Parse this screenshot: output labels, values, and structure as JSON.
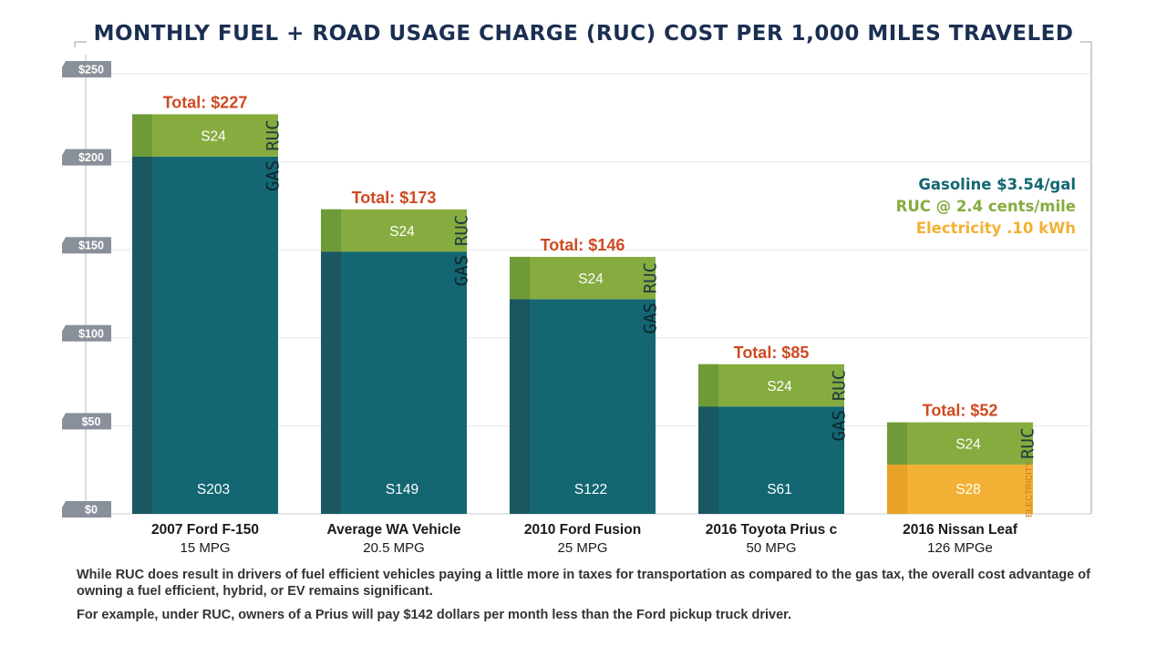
{
  "title": "MONTHLY FUEL + ROAD USAGE CHARGE (RUC) COST PER 1,000 MILES TRAVELED",
  "legend": {
    "gasoline": "Gasoline $3.54/gal",
    "ruc": "RUC @ 2.4 cents/mile",
    "electricity": "Electricity .10 kWh"
  },
  "colors": {
    "gas": "#136672",
    "gas_dark": "#1a5761",
    "ruc": "#86ab3f",
    "ruc_dark": "#6e9a38",
    "electricity": "#f2b134",
    "electricity_dark": "#e7a127",
    "total": "#cf4a22",
    "title": "#1b2f52",
    "axis_tag": "#8a909a"
  },
  "chart_data": {
    "type": "bar",
    "stacked": true,
    "categories": [
      "2007 Ford F-150",
      "Average WA Vehicle",
      "2010 Ford Fusion",
      "2016 Toyota Prius c",
      "2016 Nissan Leaf"
    ],
    "subcategories": [
      "15 MPG",
      "20.5 MPG",
      "25 MPG",
      "50 MPG",
      "126 MPGe"
    ],
    "series": [
      {
        "name": "GAS",
        "values": [
          203,
          149,
          122,
          61,
          0
        ],
        "labels": [
          "S203",
          "S149",
          "S122",
          "S61",
          ""
        ]
      },
      {
        "name": "ELECTRICITY",
        "values": [
          0,
          0,
          0,
          0,
          28
        ],
        "labels": [
          "",
          "",
          "",
          "",
          "S28"
        ]
      },
      {
        "name": "RUC",
        "values": [
          24,
          24,
          24,
          24,
          24
        ],
        "labels": [
          "S24",
          "S24",
          "S24",
          "S24",
          "S24"
        ]
      }
    ],
    "totals": [
      227,
      173,
      146,
      85,
      52
    ],
    "total_labels": [
      "Total: $227",
      "Total: $173",
      "Total: $146",
      "Total: $85",
      "Total: $52"
    ],
    "ylim": [
      0,
      250
    ],
    "yticks": [
      0,
      50,
      100,
      150,
      200,
      250
    ],
    "ytick_labels": [
      "$0",
      "$50",
      "$100",
      "$150",
      "$200",
      "$250"
    ],
    "grid": true,
    "legend_position": "right"
  },
  "footnotes": [
    "While RUC does result in drivers of fuel efficient vehicles paying a little more in taxes for transportation as compared to the gas tax, the overall cost advantage of owning a fuel efficient, hybrid, or EV remains significant.",
    "For example, under RUC, owners of a Prius will pay $142 dollars per month less than the Ford pickup truck driver."
  ]
}
